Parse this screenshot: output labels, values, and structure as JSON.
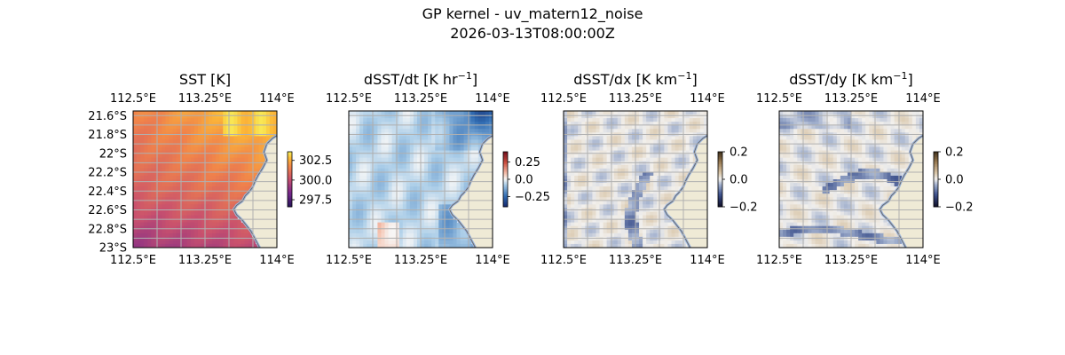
{
  "figure": {
    "title": "GP kernel - uv_matern12_noise",
    "subtitle": "2026-03-13T08:00:00Z"
  },
  "colors": {
    "land": "#efead6",
    "ocean_edge": "#9db7e0",
    "coast": "#6b6b6b",
    "grid": "#b0b0b0"
  },
  "chart_data": [
    {
      "type": "heatmap",
      "title": "SST [K]",
      "title_sup": "",
      "title_end": "]",
      "colormap": "plasma-like",
      "colorbar": {
        "min": 296.6,
        "max": 303.6,
        "ticks": [
          302.5,
          300.0,
          297.5
        ]
      },
      "x_ticks": [
        "112.5°E",
        "113.25°E",
        "114°E"
      ],
      "y_ticks": [
        "21.6°S",
        "21.8°S",
        "22°S",
        "22.2°S",
        "22.4°S",
        "22.6°S",
        "22.8°S",
        "23°S"
      ],
      "x_range": [
        112.5,
        114.0
      ],
      "y_range": [
        -23.0,
        -21.55
      ]
    },
    {
      "type": "heatmap",
      "title": "dSST/dt [K hr",
      "title_sup": "−1",
      "title_end": "]",
      "colormap": "RdBu_r",
      "colorbar": {
        "min": -0.4,
        "max": 0.4,
        "ticks": [
          0.25,
          0.0,
          -0.25
        ]
      },
      "x_ticks": [
        "112.5°E",
        "113.25°E",
        "114°E"
      ],
      "y_ticks": [],
      "x_range": [
        112.5,
        114.0
      ],
      "y_range": [
        -23.0,
        -21.55
      ]
    },
    {
      "type": "heatmap",
      "title": "dSST/dx [K km",
      "title_sup": "−1",
      "title_end": "]",
      "colormap": "diverging brown-blue",
      "colorbar": {
        "min": -0.2,
        "max": 0.2,
        "ticks": [
          0.2,
          0.0,
          -0.2
        ]
      },
      "x_ticks": [
        "112.5°E",
        "113.25°E",
        "114°E"
      ],
      "y_ticks": [],
      "x_range": [
        112.5,
        114.0
      ],
      "y_range": [
        -23.0,
        -21.55
      ]
    },
    {
      "type": "heatmap",
      "title": "dSST/dy [K km",
      "title_sup": "−1",
      "title_end": "]",
      "colormap": "diverging brown-blue",
      "colorbar": {
        "min": -0.2,
        "max": 0.2,
        "ticks": [
          0.2,
          0.0,
          -0.2
        ]
      },
      "x_ticks": [
        "112.5°E",
        "113.25°E",
        "114°E"
      ],
      "y_ticks": [],
      "x_range": [
        112.5,
        114.0
      ],
      "y_range": [
        -23.0,
        -21.55
      ]
    }
  ]
}
